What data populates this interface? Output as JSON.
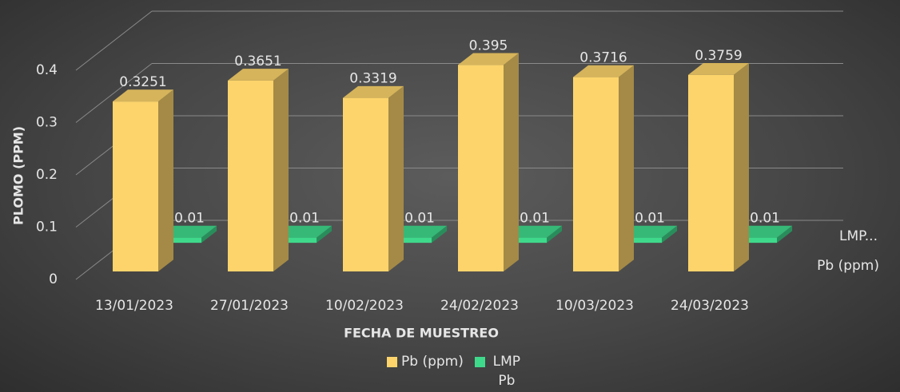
{
  "chart_data": {
    "type": "bar3d",
    "x_label": "FECHA DE MUESTREO",
    "y_label": "PLOMO (PPM)",
    "categories": [
      "13/01/2023",
      "27/01/2023",
      "10/02/2023",
      "24/02/2023",
      "10/03/2023",
      "24/03/2023"
    ],
    "series": [
      {
        "name": "Pb (ppm)",
        "color": "#fcd46b",
        "values": [
          0.3251,
          0.3651,
          0.3319,
          0.395,
          0.3716,
          0.3759
        ]
      },
      {
        "name": "LMP Pb",
        "color": "#3fd98c",
        "values": [
          0.01,
          0.01,
          0.01,
          0.01,
          0.01,
          0.01
        ]
      }
    ],
    "depth_labels": [
      "Pb (ppm)",
      "LMP..."
    ],
    "ylim": [
      0,
      0.4
    ],
    "yticks": [
      0,
      0.1,
      0.2,
      0.3,
      0.4
    ],
    "grid": true,
    "legend": "bottom"
  }
}
